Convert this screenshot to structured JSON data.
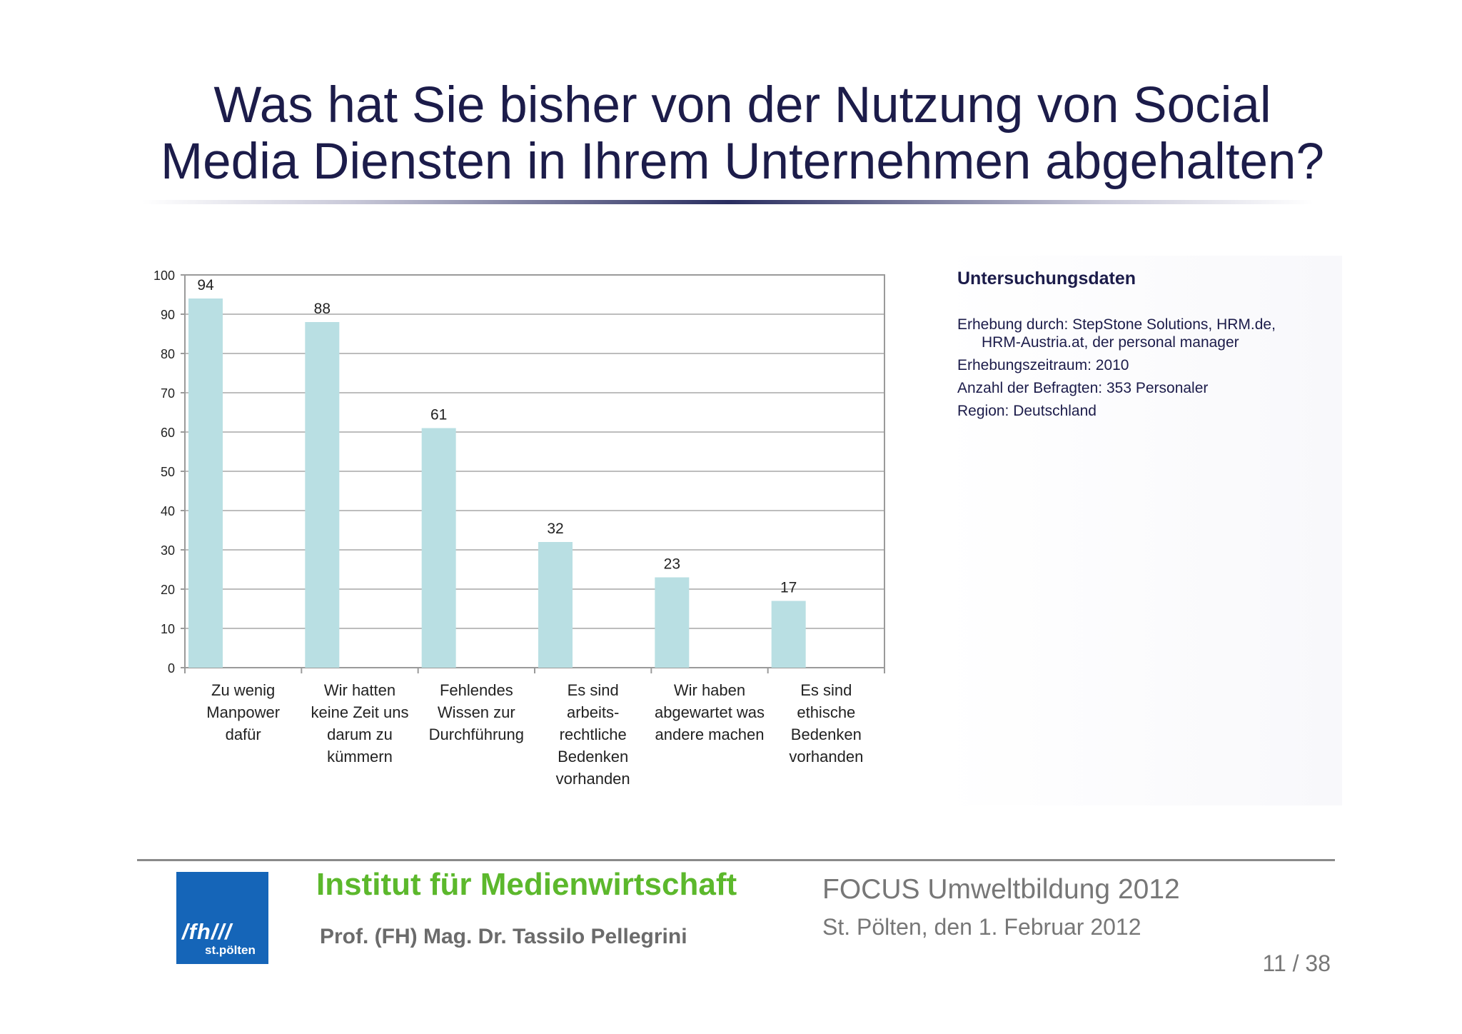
{
  "slide": {
    "title_line1": "Was hat Sie bisher von der Nutzung von Social",
    "title_line2": "Media Diensten in Ihrem Unternehmen abgehalten?"
  },
  "info": {
    "heading": "Untersuchungsdaten",
    "lines": [
      {
        "text": "Erhebung durch: StepStone Solutions, HRM.de,",
        "cont": "HRM-Austria.at, der personal manager"
      },
      {
        "text": "Erhebungszeitraum: 2010"
      },
      {
        "text": "Anzahl der Befragten: 353 Personaler"
      },
      {
        "text": "Region: Deutschland"
      }
    ]
  },
  "footer": {
    "logo_mark": "/fh///",
    "logo_sub": "st.pölten",
    "institute": "Institut für Medienwirtschaft",
    "author": "Prof. (FH) Mag. Dr. Tassilo Pellegrini",
    "event": "FOCUS Umweltbildung 2012",
    "date": "St. Pölten, den 1. Februar 2012",
    "page": "11 / 38"
  },
  "colors": {
    "bar": "#b9dfe3",
    "title": "#1c1c4a",
    "institute": "#5cb82c",
    "logo_bg": "#1565b8"
  },
  "chart_data": {
    "type": "bar",
    "categories": [
      [
        "Zu wenig",
        "Manpower",
        "dafür"
      ],
      [
        "Wir hatten",
        "keine Zeit uns",
        "darum zu",
        "kümmern"
      ],
      [
        "Fehlendes",
        "Wissen zur",
        "Durchführung"
      ],
      [
        "Es sind",
        "arbeits-",
        "rechtliche",
        "Bedenken",
        "vorhanden"
      ],
      [
        "Wir haben",
        "abgewartet was",
        "andere machen"
      ],
      [
        "Es sind",
        "ethische",
        "Bedenken",
        "vorhanden"
      ]
    ],
    "values": [
      94,
      88,
      61,
      32,
      23,
      17
    ],
    "ylim": [
      0,
      100
    ],
    "yticks": [
      0,
      10,
      20,
      30,
      40,
      50,
      60,
      70,
      80,
      90,
      100
    ],
    "grid": true,
    "data_labels": true
  }
}
